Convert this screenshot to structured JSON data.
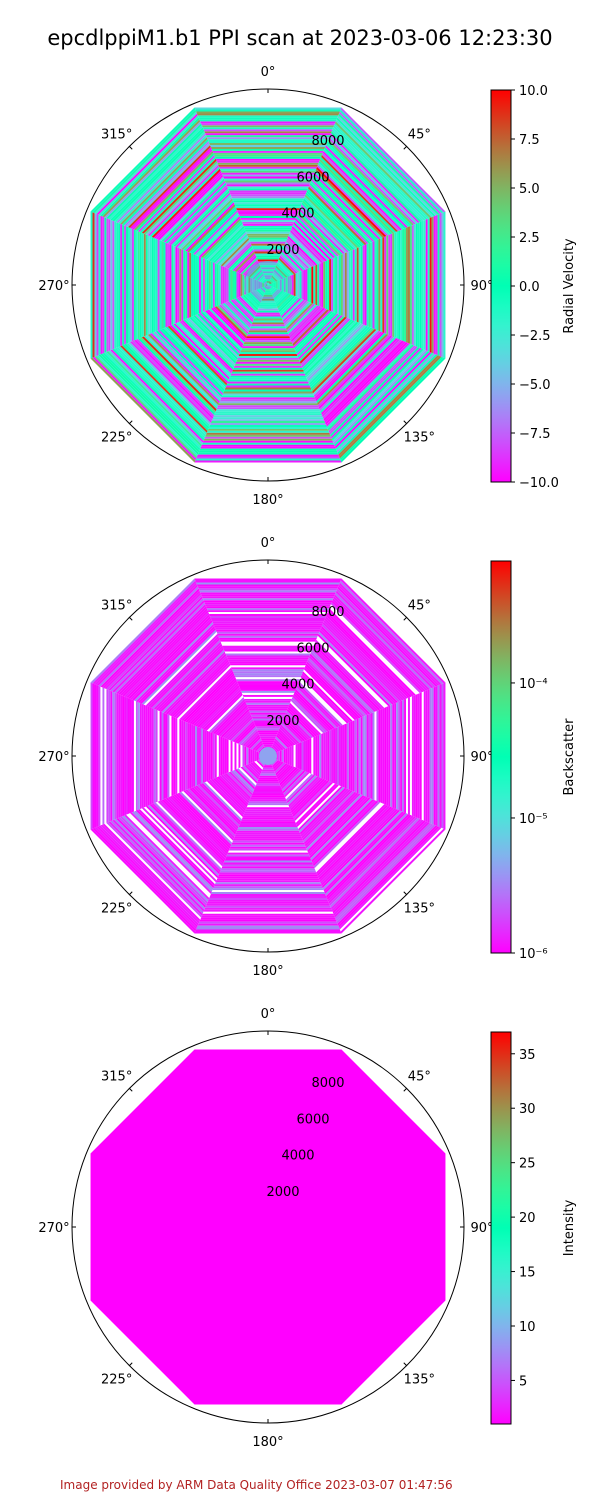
{
  "title": "epcdlppiM1.b1 PPI scan at 2023-03-06 12:23:30",
  "footer": "Image provided by ARM Data Quality Office 2023-03-07 01:47:56",
  "footer_color": "#b22222",
  "chart_data": [
    {
      "type": "polar",
      "azimuth_tick_labels": [
        "0°",
        "45°",
        "90°",
        "135°",
        "180°",
        "225°",
        "270°",
        "315°"
      ],
      "radial_tick_labels": [
        "2000",
        "4000",
        "6000",
        "8000"
      ],
      "radial_ticks": [
        2000,
        4000,
        6000,
        8000
      ],
      "rlim": [
        0,
        10000
      ],
      "colorbar": {
        "label": "Radial Velocity",
        "scale": "linear",
        "range": [
          -10.0,
          10.0
        ],
        "tick_labels": [
          "10.0",
          "7.5",
          "5.0",
          "2.5",
          "0.0",
          "−2.5",
          "−5.0",
          "−7.5",
          "−10.0"
        ],
        "ticks": [
          10,
          7.5,
          5,
          2.5,
          0,
          -2.5,
          -5,
          -7.5,
          -10
        ],
        "colormap": "rainbow"
      },
      "field_description": "noisy",
      "field_center": 0.5
    },
    {
      "type": "polar",
      "azimuth_tick_labels": [
        "0°",
        "45°",
        "90°",
        "135°",
        "180°",
        "225°",
        "270°",
        "315°"
      ],
      "radial_tick_labels": [
        "2000",
        "4000",
        "6000",
        "8000"
      ],
      "radial_ticks": [
        2000,
        4000,
        6000,
        8000
      ],
      "rlim": [
        0,
        10000
      ],
      "colorbar": {
        "label": "Backscatter",
        "scale": "log",
        "range": [
          1e-06,
          0.0008
        ],
        "tick_labels": [
          "10⁻⁴",
          "10⁻⁵",
          "10⁻⁶"
        ],
        "ticks": [
          0.0001,
          1e-05,
          1e-06
        ],
        "colormap": "rainbow"
      },
      "field_description": "low",
      "field_center": 0.06
    },
    {
      "type": "polar",
      "azimuth_tick_labels": [
        "0°",
        "45°",
        "90°",
        "135°",
        "180°",
        "225°",
        "270°",
        "315°"
      ],
      "radial_tick_labels": [
        "2000",
        "4000",
        "6000",
        "8000"
      ],
      "radial_ticks": [
        2000,
        4000,
        6000,
        8000
      ],
      "rlim": [
        0,
        10000
      ],
      "colorbar": {
        "label": "Intensity",
        "scale": "linear",
        "range": [
          1.0,
          37.0
        ],
        "tick_labels": [
          "35",
          "30",
          "25",
          "20",
          "15",
          "10",
          "5"
        ],
        "ticks": [
          35,
          30,
          25,
          20,
          15,
          10,
          5
        ],
        "colormap": "rainbow"
      },
      "field_description": "uniform",
      "field_center": 0.0
    }
  ]
}
